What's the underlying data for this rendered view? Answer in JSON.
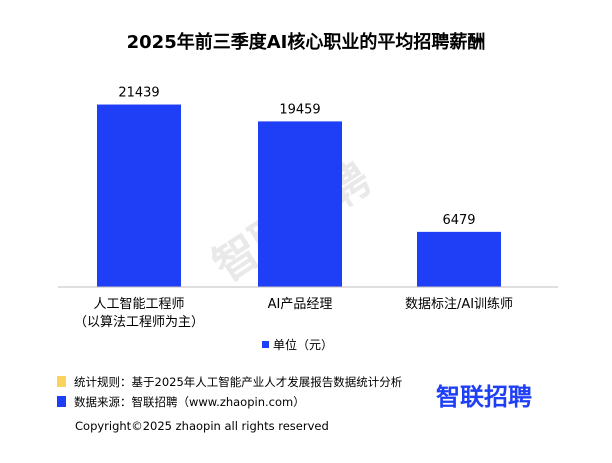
{
  "chart_data": {
    "type": "bar",
    "title": "2025年前三季度AI核心职业的平均招聘薪酬",
    "categories": [
      [
        "人工智能工程师",
        "（以算法工程师为主）"
      ],
      [
        "AI产品经理"
      ],
      [
        "数据标注/AI训练师"
      ]
    ],
    "values": [
      21439,
      19459,
      6479
    ],
    "series": [
      {
        "name": "单位（元）",
        "values": [
          21439,
          19459,
          6479
        ]
      }
    ],
    "ylim": [
      0,
      23500
    ],
    "grid": false,
    "legend": "bottom-center"
  },
  "colors": {
    "bar": "#1e3ff5",
    "axis": "#bfbfbf",
    "note_yellow": "#fbd25a",
    "note_blue": "#1e3ff5",
    "brand": "#1e3ff5",
    "watermark": "#e9e9e9"
  },
  "notes": [
    {
      "text": "统计规则：基于2025年人工智能产业人才发展报告数据统计分析",
      "marker": "yellow-square-icon"
    },
    {
      "text": "数据来源：智联招聘（www.zhaopin.com）",
      "marker": "blue-square-icon"
    }
  ],
  "brand": "智联招聘",
  "watermark": "智联招聘",
  "copyright": "Copyright©2025 zhaopin all rights reserved"
}
